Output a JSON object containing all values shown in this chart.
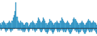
{
  "values": [
    3,
    2,
    4,
    5,
    4,
    3,
    2,
    3,
    4,
    5,
    4,
    3,
    5,
    7,
    9,
    12,
    18,
    8,
    5,
    4,
    3,
    5,
    4,
    3,
    2,
    2,
    3,
    4,
    3,
    1,
    2,
    3,
    4,
    5,
    4,
    3,
    2,
    3,
    5,
    7,
    6,
    5,
    4,
    5,
    7,
    6,
    5,
    3,
    2,
    3,
    4,
    6,
    5,
    4,
    3,
    2,
    3,
    4,
    5,
    4,
    3,
    3,
    5,
    7,
    6,
    5,
    4,
    3,
    4,
    5,
    4,
    3,
    2,
    3,
    4,
    6,
    7,
    6,
    5,
    4,
    3,
    2,
    3,
    4,
    5,
    4,
    3,
    2,
    3,
    4,
    5,
    6,
    5,
    4,
    3,
    4,
    5,
    4,
    3,
    2
  ],
  "neg_values": [
    -1,
    -2,
    -1,
    0,
    -1,
    -2,
    -3,
    -2,
    -1,
    -1,
    -2,
    -3,
    -2,
    -1,
    -1,
    -1,
    0,
    -1,
    -2,
    -1,
    -2,
    -1,
    -2,
    -3,
    -2,
    -3,
    -2,
    -1,
    -2,
    -3,
    -2,
    -1,
    -1,
    -2,
    -1,
    -2,
    -3,
    -2,
    -1,
    -1,
    -1,
    -2,
    -3,
    -2,
    -1,
    -1,
    -2,
    -3,
    -4,
    -3,
    -2,
    -1,
    -2,
    -3,
    -4,
    -3,
    -2,
    -1,
    -2,
    -3,
    -2,
    -3,
    -2,
    -1,
    -2,
    -3,
    -2,
    -3,
    -2,
    -1,
    -2,
    -3,
    -4,
    -3,
    -2,
    -1,
    -1,
    -2,
    -3,
    -2,
    -3,
    -4,
    -3,
    -2,
    -1,
    -2,
    -3,
    -4,
    -3,
    -2,
    -1,
    -2,
    -3,
    -2,
    -3,
    -2,
    -1,
    -2,
    -3,
    -4
  ],
  "bar_color": "#4aadd6",
  "edge_color": "#1a72a8",
  "background_color": "#ffffff",
  "ylim": [
    -6,
    20
  ],
  "zero_line_color": "#222222"
}
